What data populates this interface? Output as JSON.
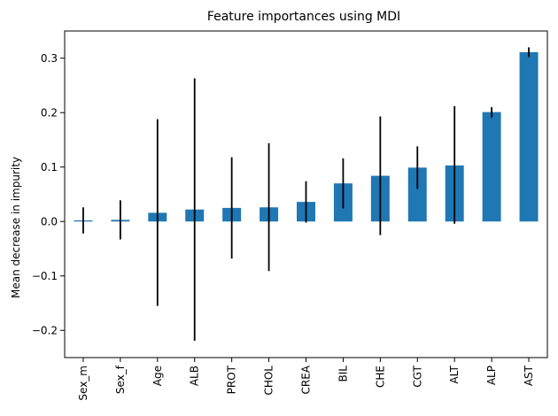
{
  "chart_data": {
    "type": "bar",
    "title": "Feature importances using MDI",
    "xlabel": "",
    "ylabel": "Mean decrease in impurity",
    "categories": [
      "Sex_m",
      "Sex_f",
      "Age",
      "ALB",
      "PROT",
      "CHOL",
      "CREA",
      "BIL",
      "CHE",
      "CGT",
      "ALT",
      "ALP",
      "AST"
    ],
    "values": [
      0.002,
      0.003,
      0.016,
      0.022,
      0.025,
      0.026,
      0.036,
      0.07,
      0.084,
      0.099,
      0.103,
      0.201,
      0.311
    ],
    "error_low": [
      -0.022,
      -0.033,
      -0.155,
      -0.219,
      -0.068,
      -0.091,
      -0.002,
      0.024,
      -0.025,
      0.06,
      -0.004,
      0.191,
      0.302
    ],
    "error_high": [
      0.026,
      0.039,
      0.188,
      0.263,
      0.118,
      0.144,
      0.074,
      0.116,
      0.193,
      0.138,
      0.212,
      0.21,
      0.32
    ],
    "ylim": [
      -0.25,
      0.35
    ],
    "yticks": [
      -0.2,
      -0.1,
      0.0,
      0.1,
      0.2,
      0.3
    ],
    "ytick_labels": [
      "−0.2",
      "−0.1",
      "0.0",
      "0.1",
      "0.2",
      "0.3"
    ],
    "grid": false,
    "legend": "none",
    "bar_color": "#1f77b4",
    "error_color": "#000000"
  }
}
